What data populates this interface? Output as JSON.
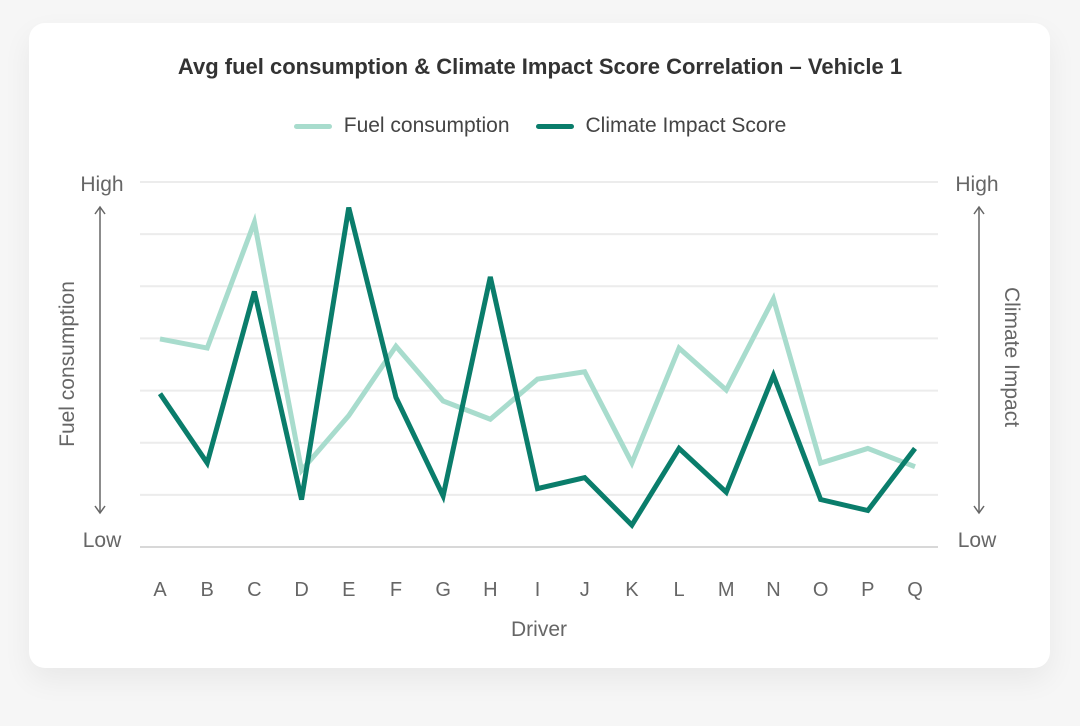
{
  "chart_data": {
    "type": "line",
    "title": "Avg fuel consumption & Climate Impact Score Correlation – Vehicle 1",
    "xlabel": "Driver",
    "ylabel_left": "Fuel consumption",
    "ylabel_right": "Climate Impact",
    "y_left_ticks": {
      "high": "High",
      "low": "Low"
    },
    "y_right_ticks": {
      "high": "High",
      "low": "Low"
    },
    "ylim": [
      0,
      1
    ],
    "grid": true,
    "legend_position": "top",
    "categories": [
      "A",
      "B",
      "C",
      "D",
      "E",
      "F",
      "G",
      "H",
      "I",
      "J",
      "K",
      "L",
      "M",
      "N",
      "O",
      "P",
      "Q"
    ],
    "series": [
      {
        "name": "Fuel consumption",
        "color": "#a8dccd",
        "values": [
          0.57,
          0.545,
          0.89,
          0.21,
          0.36,
          0.55,
          0.4,
          0.35,
          0.46,
          0.48,
          0.23,
          0.545,
          0.43,
          0.68,
          0.23,
          0.27,
          0.22
        ]
      },
      {
        "name": "Climate Impact Score",
        "color": "#0a7d6b",
        "values": [
          0.42,
          0.23,
          0.7,
          0.13,
          0.93,
          0.41,
          0.14,
          0.74,
          0.16,
          0.19,
          0.06,
          0.27,
          0.15,
          0.47,
          0.13,
          0.1,
          0.27
        ]
      }
    ]
  }
}
